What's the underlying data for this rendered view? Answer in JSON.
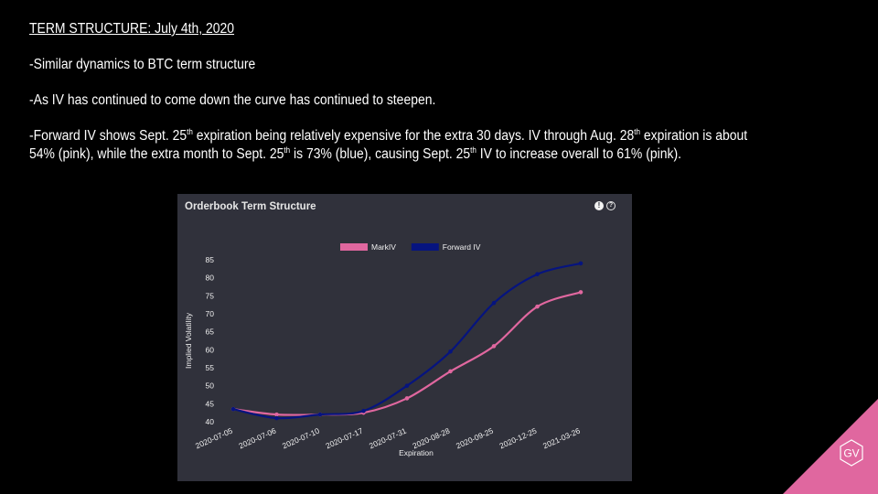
{
  "slide": {
    "title": "TERM STRUCTURE: July 4th, 2020",
    "bullet1": "-Similar dynamics to BTC term structure",
    "bullet2": "-As IV has continued to come down the curve has continued to steepen.",
    "bullet3": {
      "t1": "-Forward IV shows Sept. 25",
      "s1": "th",
      "t2": " expiration being relatively expensive for the extra 30 days. IV through Aug. 28",
      "s2": "th",
      "t3": " expiration is about 54% (pink), while the extra month to Sept. 25",
      "s3": "th",
      "t4": " is 73% (blue), causing Sept. 25",
      "s4": "th",
      "t5": " IV to increase overall to 61% (pink)."
    }
  },
  "card": {
    "title": "Orderbook Term Structure",
    "warn_icon": "!",
    "help_icon": "?"
  },
  "logo": {
    "text": "GV",
    "color": "#e0679f"
  },
  "colors": {
    "mark": "#e0679f",
    "forward": "#06147f",
    "card_bg": "#30313b"
  },
  "chart_data": {
    "type": "line",
    "categories": [
      "2020-07-05",
      "2020-07-06",
      "2020-07-10",
      "2020-07-17",
      "2020-07-31",
      "2020-08-28",
      "2020-09-25",
      "2020-12-25",
      "2021-03-26"
    ],
    "series": [
      {
        "name": "MarkIV",
        "color": "#e0679f",
        "values": [
          43.5,
          42,
          42,
          42.5,
          46.5,
          54,
          61,
          72,
          76
        ]
      },
      {
        "name": "Forward IV",
        "color": "#06147f",
        "values": [
          43.5,
          41,
          42,
          43,
          50,
          59.5,
          73,
          81,
          84
        ]
      }
    ],
    "xlabel": "Expiration",
    "ylabel": "Implied Volatility",
    "ylim": [
      40,
      85
    ],
    "yticks": [
      40,
      45,
      50,
      55,
      60,
      65,
      70,
      75,
      80,
      85
    ],
    "legend": "top-center",
    "grid": false
  }
}
